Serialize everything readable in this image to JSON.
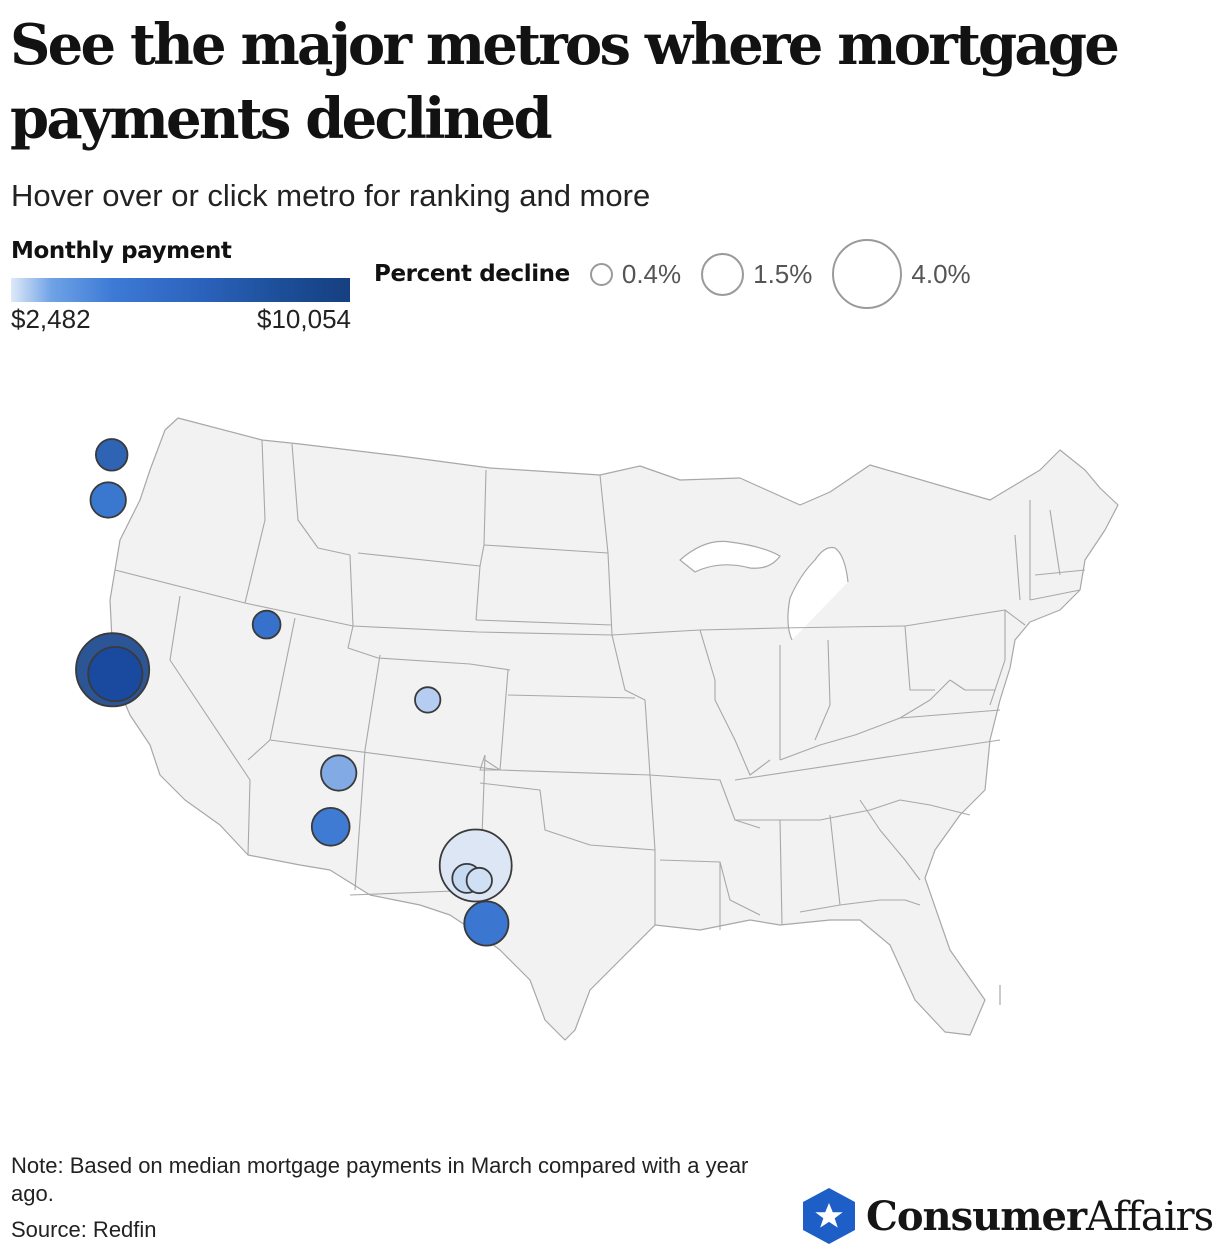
{
  "title": "See the major metros where mortgage payments declined",
  "subtitle": "Hover over or click metro for ranking and more",
  "legend_color": {
    "heading": "Monthly payment",
    "min_label": "$2,482",
    "max_label": "$10,054",
    "colors": [
      "#dfe9f8",
      "#3d7ad6",
      "#163f80"
    ]
  },
  "legend_size": {
    "heading": "Percent decline",
    "items": [
      {
        "label": "0.4%",
        "value": 0.4
      },
      {
        "label": "1.5%",
        "value": 1.5
      },
      {
        "label": "4.0%",
        "value": 4.0
      }
    ]
  },
  "map": {
    "land_color": "#f2f2f2",
    "border_color": "#a8a8a8",
    "metro_stroke": "#3a3a3a",
    "metros": [
      {
        "lon": -122.3,
        "lat": 47.6,
        "color": "#2f63b3",
        "decline": 1.0
      },
      {
        "lon": -122.7,
        "lat": 45.5,
        "color": "#3a78d0",
        "decline": 1.3
      },
      {
        "lon": -122.2,
        "lat": 37.6,
        "color": "#2c5596",
        "decline": 4.3
      },
      {
        "lon": -121.9,
        "lat": 37.4,
        "color": "#1a4aa0",
        "decline": 2.8
      },
      {
        "lon": -104.9,
        "lat": 39.7,
        "color": "#3672cc",
        "decline": 0.7
      },
      {
        "lon": -86.8,
        "lat": 36.2,
        "color": "#b4cdf0",
        "decline": 0.5
      },
      {
        "lon": -96.8,
        "lat": 32.8,
        "color": "#82aae5",
        "decline": 1.3
      },
      {
        "lon": -97.7,
        "lat": 30.3,
        "color": "#3f7bd3",
        "decline": 1.5
      },
      {
        "lon": -81.4,
        "lat": 28.5,
        "color": "#dce6f4",
        "decline": 4.2
      },
      {
        "lon": -81.0,
        "lat": 27.8,
        "color": "#cfdff4",
        "decline": 0.5
      },
      {
        "lon": -82.4,
        "lat": 27.9,
        "color": "#c7daf3",
        "decline": 0.8
      },
      {
        "lon": -80.2,
        "lat": 25.8,
        "color": "#3b76d0",
        "decline": 2.0
      }
    ]
  },
  "note": "Note: Based on median mortgage payments in March compared with a year ago.",
  "source": "Source: Redfin",
  "brand": {
    "bold": "Consumer",
    "regular": "Affairs",
    "badge_color": "#1d5fc7"
  }
}
